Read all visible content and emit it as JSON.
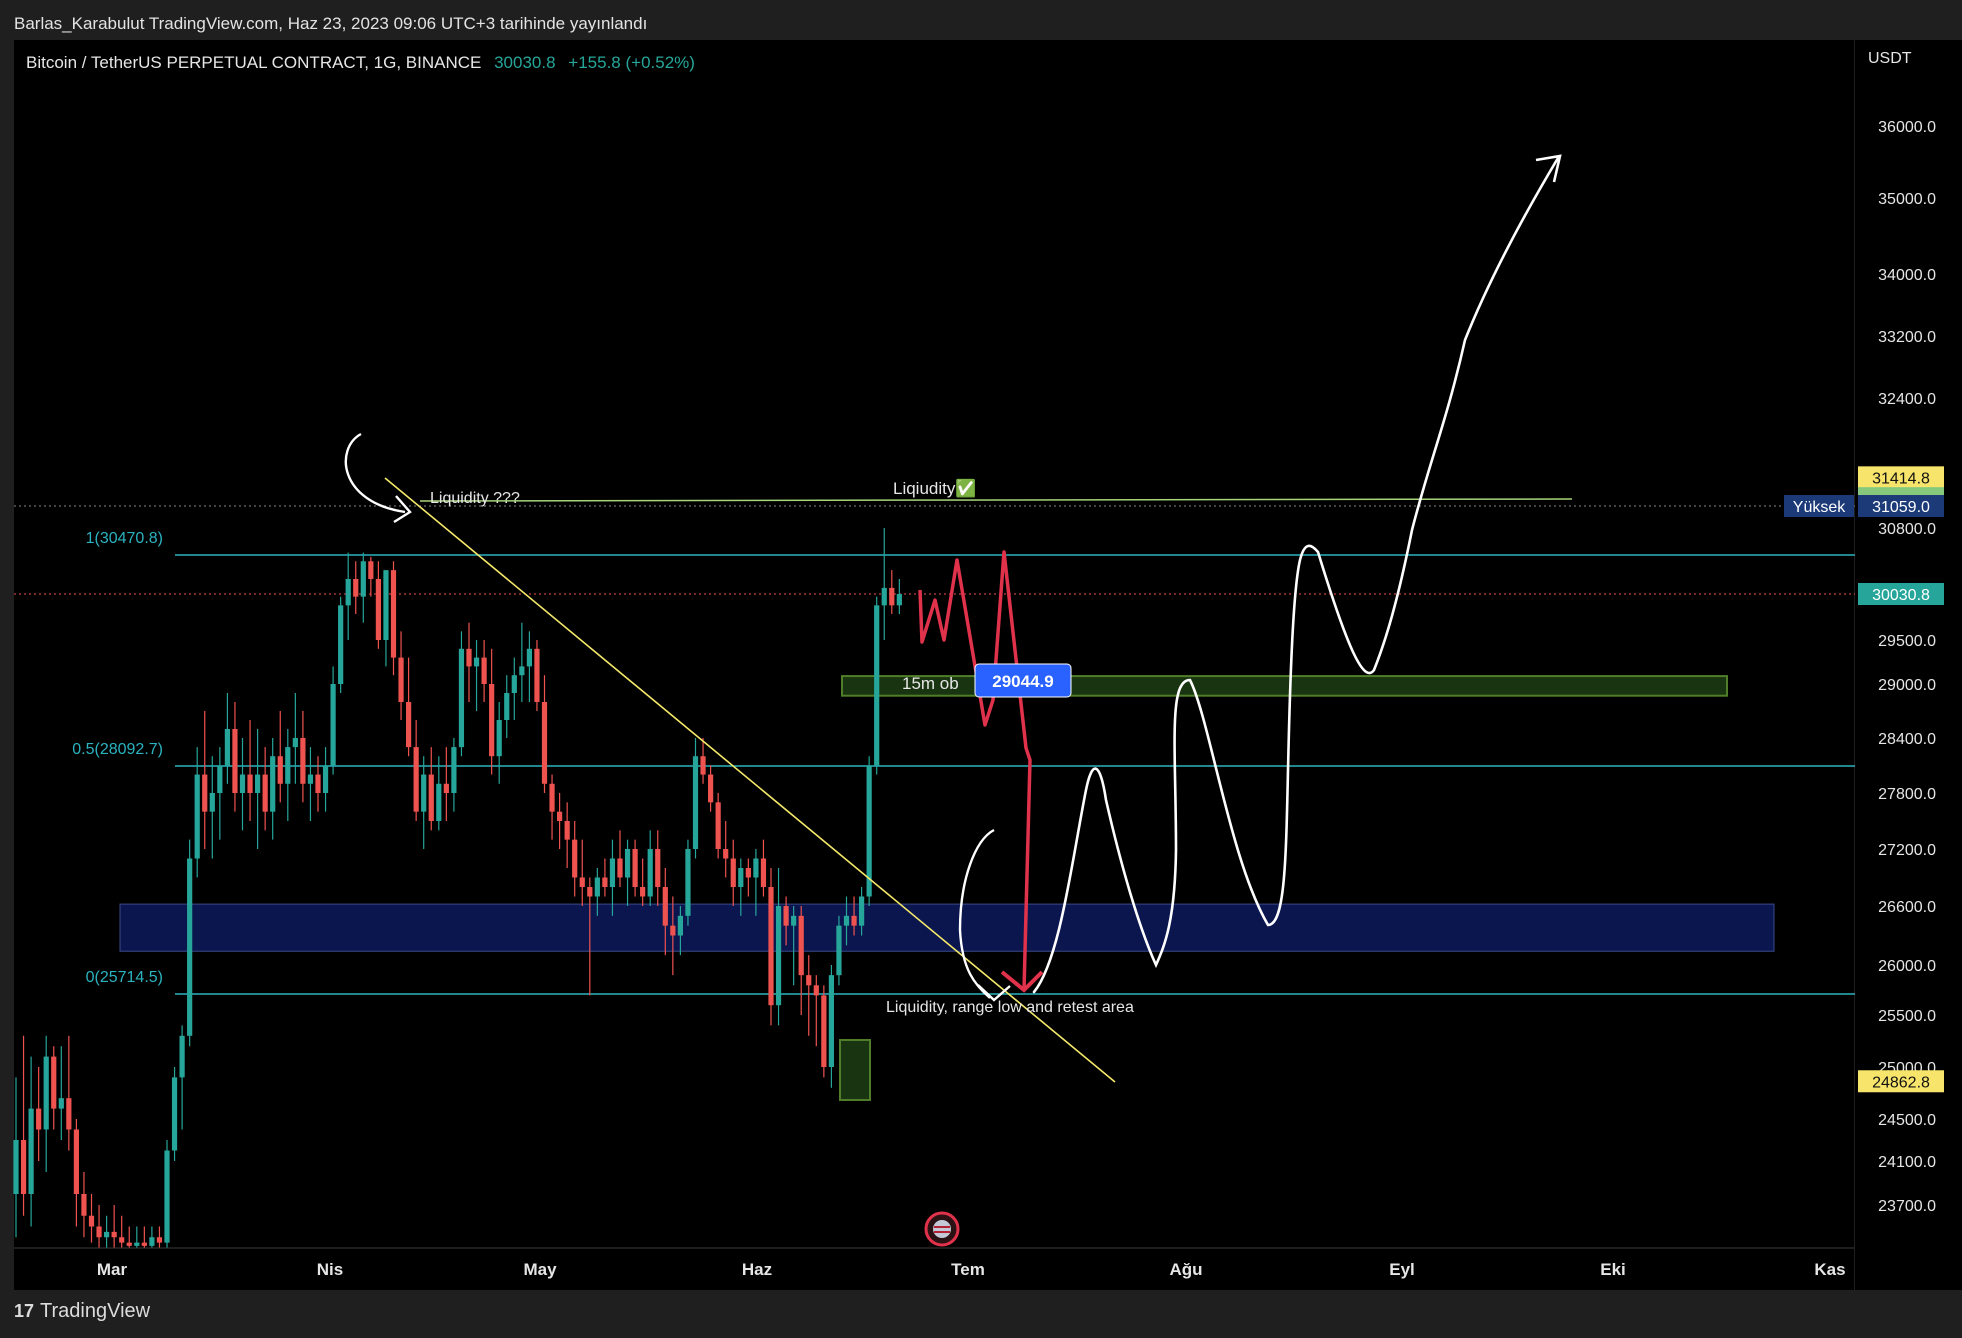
{
  "header": {
    "published": "Barlas_Karabulut TradingView.com, Haz 23, 2023 09:06 UTC+3 tarihinde yayınlandı",
    "symbol": "Bitcoin / TetherUS PERPETUAL CONTRACT, 1G, BINANCE",
    "last_price": "30030.8",
    "change": "+155.8 (+0.52%)"
  },
  "footer": {
    "brand": "TradingView"
  },
  "colors": {
    "bull": "#26a69a",
    "bear": "#ef5350",
    "fib": "#2bb3c0",
    "trendline": "#f5e96a",
    "drawing": "#ffffff",
    "projection": "#e0324b",
    "zone_blue": "#0d1a5c",
    "zone_green": "#1c3a12"
  },
  "chart_data": {
    "type": "candlestick",
    "title": "Bitcoin / TetherUS PERPETUAL CONTRACT, 1G, BINANCE",
    "currency": "USDT",
    "timeframe": "1G",
    "x_tick_labels": [
      "Mar",
      "Nis",
      "May",
      "Haz",
      "Tem",
      "Ağu",
      "Eyl",
      "Eki",
      "Kas"
    ],
    "y_tick_labels": [
      "36000.0",
      "35000.0",
      "34000.0",
      "33200.0",
      "32400.0",
      "30800.0",
      "29500.0",
      "29000.0",
      "28400.0",
      "27800.0",
      "27200.0",
      "26600.0",
      "26000.0",
      "25500.0",
      "25000.0",
      "24500.0",
      "24100.0",
      "23700.0"
    ],
    "ylim": [
      23300,
      36800
    ],
    "price_labels": [
      {
        "label": "",
        "value": "31414.8",
        "color": "#f7e56b"
      },
      {
        "label": "",
        "value": "31156.3",
        "color": "#86c97c"
      },
      {
        "label": "",
        "value": "31136.2",
        "color": "#86c97c"
      },
      {
        "label": "Yüksek",
        "value": "31059.0",
        "color": "#1c3a78"
      },
      {
        "label": "",
        "value": "30030.8",
        "color": "#26a69a"
      },
      {
        "label": "",
        "value": "24862.8",
        "color": "#f7e56b"
      }
    ],
    "fib_levels": [
      {
        "label": "1(30470.8)",
        "value": 30470.8
      },
      {
        "label": "0.5(28092.7)",
        "value": 28092.7
      },
      {
        "label": "0(25714.5)",
        "value": 25714.5
      }
    ],
    "annotations": [
      {
        "text": "Liquidity ???"
      },
      {
        "text": "Liqiudity✅"
      },
      {
        "text": "15m ob"
      },
      {
        "text": "Liquidity, range low and retest area"
      }
    ],
    "callout_price": "29044.9",
    "zones": [
      {
        "name": "demand-zone",
        "from": 26140,
        "to": 26620
      },
      {
        "name": "15m-ob-zone",
        "from": 28870,
        "to": 29090
      }
    ],
    "candles": [
      {
        "o": 23800,
        "h": 24900,
        "l": 23400,
        "c": 24300
      },
      {
        "o": 24300,
        "h": 25300,
        "l": 23600,
        "c": 23800
      },
      {
        "o": 23800,
        "h": 25100,
        "l": 23500,
        "c": 24600
      },
      {
        "o": 24600,
        "h": 25000,
        "l": 24100,
        "c": 24400
      },
      {
        "o": 24400,
        "h": 25300,
        "l": 24000,
        "c": 25100
      },
      {
        "o": 25100,
        "h": 25200,
        "l": 24400,
        "c": 24600
      },
      {
        "o": 24600,
        "h": 25200,
        "l": 24300,
        "c": 24700
      },
      {
        "o": 24700,
        "h": 25300,
        "l": 24200,
        "c": 24400
      },
      {
        "o": 24400,
        "h": 24500,
        "l": 23500,
        "c": 23800
      },
      {
        "o": 23800,
        "h": 24000,
        "l": 23400,
        "c": 23600
      },
      {
        "o": 23600,
        "h": 23800,
        "l": 23350,
        "c": 23500
      },
      {
        "o": 23500,
        "h": 23700,
        "l": 23300,
        "c": 23400
      },
      {
        "o": 23400,
        "h": 23600,
        "l": 23300,
        "c": 23450
      },
      {
        "o": 23450,
        "h": 23700,
        "l": 23300,
        "c": 23400
      },
      {
        "o": 23400,
        "h": 23600,
        "l": 23300,
        "c": 23350
      },
      {
        "o": 23350,
        "h": 23500,
        "l": 23300,
        "c": 23320
      },
      {
        "o": 23320,
        "h": 23500,
        "l": 23300,
        "c": 23350
      },
      {
        "o": 23350,
        "h": 23500,
        "l": 23300,
        "c": 23320
      },
      {
        "o": 23320,
        "h": 23500,
        "l": 23300,
        "c": 23400
      },
      {
        "o": 23400,
        "h": 23500,
        "l": 23300,
        "c": 23350
      },
      {
        "o": 23350,
        "h": 24300,
        "l": 23300,
        "c": 24200
      },
      {
        "o": 24200,
        "h": 25000,
        "l": 24100,
        "c": 24900
      },
      {
        "o": 24900,
        "h": 25400,
        "l": 24400,
        "c": 25300
      },
      {
        "o": 25300,
        "h": 27300,
        "l": 25200,
        "c": 27100
      },
      {
        "o": 27100,
        "h": 28300,
        "l": 26900,
        "c": 28000
      },
      {
        "o": 28000,
        "h": 28700,
        "l": 27200,
        "c": 27600
      },
      {
        "o": 27600,
        "h": 28200,
        "l": 27100,
        "c": 27800
      },
      {
        "o": 27800,
        "h": 28300,
        "l": 27300,
        "c": 28100
      },
      {
        "o": 28100,
        "h": 28900,
        "l": 27900,
        "c": 28500
      },
      {
        "o": 28500,
        "h": 28800,
        "l": 27600,
        "c": 27800
      },
      {
        "o": 27800,
        "h": 28400,
        "l": 27400,
        "c": 28000
      },
      {
        "o": 28000,
        "h": 28600,
        "l": 27500,
        "c": 27800
      },
      {
        "o": 27800,
        "h": 28500,
        "l": 27200,
        "c": 28000
      },
      {
        "o": 28000,
        "h": 28300,
        "l": 27400,
        "c": 27600
      },
      {
        "o": 27600,
        "h": 28400,
        "l": 27300,
        "c": 28200
      },
      {
        "o": 28200,
        "h": 28700,
        "l": 27700,
        "c": 27900
      },
      {
        "o": 27900,
        "h": 28500,
        "l": 27500,
        "c": 28300
      },
      {
        "o": 28300,
        "h": 28900,
        "l": 27900,
        "c": 28400
      },
      {
        "o": 28400,
        "h": 28700,
        "l": 27700,
        "c": 27900
      },
      {
        "o": 27900,
        "h": 28300,
        "l": 27500,
        "c": 28000
      },
      {
        "o": 28000,
        "h": 28200,
        "l": 27600,
        "c": 27800
      },
      {
        "o": 27800,
        "h": 28300,
        "l": 27600,
        "c": 28100
      },
      {
        "o": 28100,
        "h": 29200,
        "l": 28000,
        "c": 29000
      },
      {
        "o": 29000,
        "h": 30000,
        "l": 28900,
        "c": 29900
      },
      {
        "o": 29900,
        "h": 30500,
        "l": 29500,
        "c": 30200
      },
      {
        "o": 30200,
        "h": 30400,
        "l": 29800,
        "c": 30000
      },
      {
        "o": 30000,
        "h": 30500,
        "l": 29700,
        "c": 30400
      },
      {
        "o": 30400,
        "h": 30450,
        "l": 30000,
        "c": 30200
      },
      {
        "o": 30200,
        "h": 30400,
        "l": 29400,
        "c": 29500
      },
      {
        "o": 29500,
        "h": 30300,
        "l": 29200,
        "c": 30300
      },
      {
        "o": 30300,
        "h": 30400,
        "l": 29100,
        "c": 29300
      },
      {
        "o": 29300,
        "h": 29600,
        "l": 28600,
        "c": 28800
      },
      {
        "o": 28800,
        "h": 29300,
        "l": 28200,
        "c": 28300
      },
      {
        "o": 28300,
        "h": 28600,
        "l": 27500,
        "c": 27600
      },
      {
        "o": 27600,
        "h": 28200,
        "l": 27200,
        "c": 28000
      },
      {
        "o": 28000,
        "h": 28300,
        "l": 27400,
        "c": 27500
      },
      {
        "o": 27500,
        "h": 28200,
        "l": 27400,
        "c": 27900
      },
      {
        "o": 27900,
        "h": 28300,
        "l": 27500,
        "c": 27800
      },
      {
        "o": 27800,
        "h": 28400,
        "l": 27600,
        "c": 28300
      },
      {
        "o": 28300,
        "h": 29600,
        "l": 28200,
        "c": 29400
      },
      {
        "o": 29400,
        "h": 29700,
        "l": 28800,
        "c": 29200
      },
      {
        "o": 29200,
        "h": 29500,
        "l": 28700,
        "c": 29300
      },
      {
        "o": 29300,
        "h": 29500,
        "l": 28800,
        "c": 29000
      },
      {
        "o": 29000,
        "h": 29400,
        "l": 28000,
        "c": 28200
      },
      {
        "o": 28200,
        "h": 28800,
        "l": 27900,
        "c": 28600
      },
      {
        "o": 28600,
        "h": 29100,
        "l": 28400,
        "c": 28900
      },
      {
        "o": 28900,
        "h": 29300,
        "l": 28600,
        "c": 29100
      },
      {
        "o": 29100,
        "h": 29700,
        "l": 28800,
        "c": 29200
      },
      {
        "o": 29200,
        "h": 29600,
        "l": 28800,
        "c": 29400
      },
      {
        "o": 29400,
        "h": 29500,
        "l": 28700,
        "c": 28800
      },
      {
        "o": 28800,
        "h": 29100,
        "l": 27800,
        "c": 27900
      },
      {
        "o": 27900,
        "h": 28000,
        "l": 27300,
        "c": 27600
      },
      {
        "o": 27600,
        "h": 27800,
        "l": 27200,
        "c": 27500
      },
      {
        "o": 27500,
        "h": 27700,
        "l": 27000,
        "c": 27300
      },
      {
        "o": 27300,
        "h": 27500,
        "l": 26700,
        "c": 26900
      },
      {
        "o": 26900,
        "h": 27300,
        "l": 26600,
        "c": 26800
      },
      {
        "o": 26800,
        "h": 26900,
        "l": 25700,
        "c": 26700
      },
      {
        "o": 26700,
        "h": 27000,
        "l": 26500,
        "c": 26900
      },
      {
        "o": 26900,
        "h": 27100,
        "l": 26700,
        "c": 26800
      },
      {
        "o": 26800,
        "h": 27300,
        "l": 26500,
        "c": 27100
      },
      {
        "o": 27100,
        "h": 27400,
        "l": 26800,
        "c": 26900
      },
      {
        "o": 26900,
        "h": 27300,
        "l": 26600,
        "c": 27200
      },
      {
        "o": 27200,
        "h": 27300,
        "l": 26700,
        "c": 26800
      },
      {
        "o": 26800,
        "h": 27100,
        "l": 26600,
        "c": 26700
      },
      {
        "o": 26700,
        "h": 27400,
        "l": 26600,
        "c": 27200
      },
      {
        "o": 27200,
        "h": 27400,
        "l": 26600,
        "c": 26800
      },
      {
        "o": 26800,
        "h": 27000,
        "l": 26100,
        "c": 26400
      },
      {
        "o": 26400,
        "h": 26700,
        "l": 25900,
        "c": 26300
      },
      {
        "o": 26300,
        "h": 26600,
        "l": 26100,
        "c": 26500
      },
      {
        "o": 26500,
        "h": 27300,
        "l": 26400,
        "c": 27200
      },
      {
        "o": 27200,
        "h": 28400,
        "l": 27100,
        "c": 28200
      },
      {
        "o": 28200,
        "h": 28400,
        "l": 27900,
        "c": 28000
      },
      {
        "o": 28000,
        "h": 28100,
        "l": 27600,
        "c": 27700
      },
      {
        "o": 27700,
        "h": 27800,
        "l": 27100,
        "c": 27200
      },
      {
        "o": 27200,
        "h": 27500,
        "l": 26900,
        "c": 27100
      },
      {
        "o": 27100,
        "h": 27300,
        "l": 26600,
        "c": 26800
      },
      {
        "o": 26800,
        "h": 27100,
        "l": 26500,
        "c": 27000
      },
      {
        "o": 27000,
        "h": 27100,
        "l": 26700,
        "c": 26900
      },
      {
        "o": 26900,
        "h": 27200,
        "l": 26500,
        "c": 27100
      },
      {
        "o": 27100,
        "h": 27300,
        "l": 26700,
        "c": 26800
      },
      {
        "o": 26800,
        "h": 27000,
        "l": 25400,
        "c": 25600
      },
      {
        "o": 25600,
        "h": 27000,
        "l": 25400,
        "c": 26600
      },
      {
        "o": 26600,
        "h": 26700,
        "l": 26200,
        "c": 26400
      },
      {
        "o": 26400,
        "h": 26600,
        "l": 25800,
        "c": 26500
      },
      {
        "o": 26500,
        "h": 26600,
        "l": 25500,
        "c": 25900
      },
      {
        "o": 25900,
        "h": 26100,
        "l": 25300,
        "c": 25800
      },
      {
        "o": 25800,
        "h": 25900,
        "l": 25200,
        "c": 25700
      },
      {
        "o": 25700,
        "h": 25800,
        "l": 24900,
        "c": 25000
      },
      {
        "o": 25000,
        "h": 26000,
        "l": 24800,
        "c": 25900
      },
      {
        "o": 25900,
        "h": 26500,
        "l": 25800,
        "c": 26400
      },
      {
        "o": 26400,
        "h": 26700,
        "l": 26200,
        "c": 26500
      },
      {
        "o": 26500,
        "h": 26700,
        "l": 26300,
        "c": 26400
      },
      {
        "o": 26400,
        "h": 26800,
        "l": 26300,
        "c": 26700
      },
      {
        "o": 26700,
        "h": 28200,
        "l": 26600,
        "c": 28100
      },
      {
        "o": 28100,
        "h": 30000,
        "l": 28000,
        "c": 29900
      },
      {
        "o": 29900,
        "h": 30800,
        "l": 29500,
        "c": 30100
      },
      {
        "o": 30100,
        "h": 30300,
        "l": 29800,
        "c": 29900
      },
      {
        "o": 29900,
        "h": 30200,
        "l": 29800,
        "c": 30030.8
      }
    ]
  }
}
